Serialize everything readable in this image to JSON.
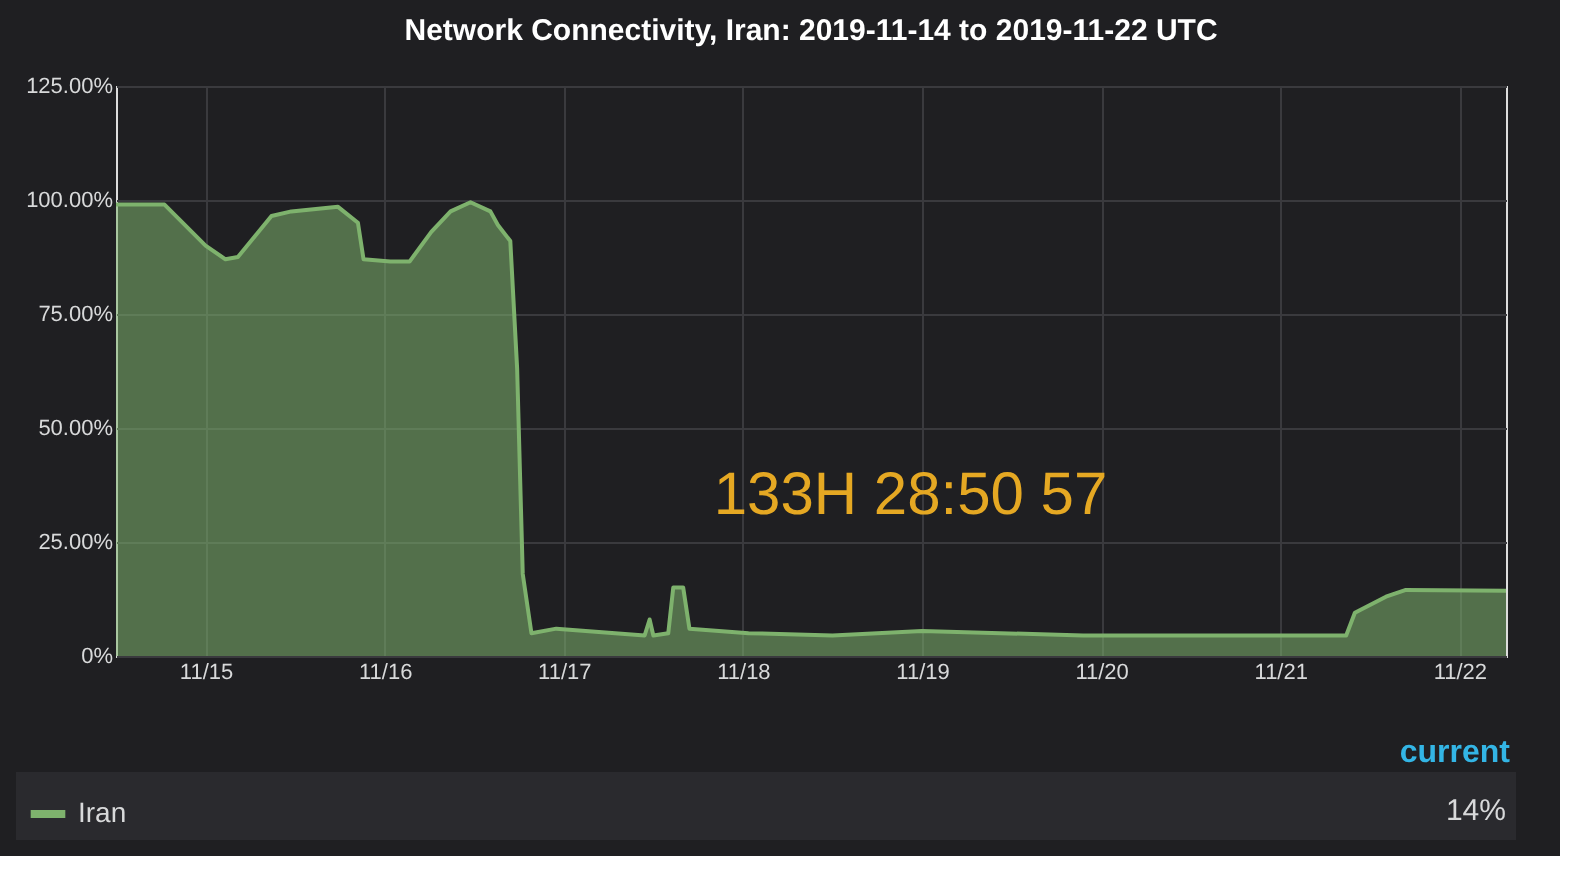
{
  "chart_data": {
    "type": "area",
    "title": "Network Connectivity, Iran: 2019-11-14 to 2019-11-22 UTC",
    "x": [
      "2019-11-14T12:00",
      "2019-11-14T18:30",
      "2019-11-15T00:00",
      "2019-11-15T02:40",
      "2019-11-15T04:20",
      "2019-11-15T08:50",
      "2019-11-15T11:30",
      "2019-11-15T17:45",
      "2019-11-15T20:25",
      "2019-11-15T21:10",
      "2019-11-16T00:45",
      "2019-11-16T03:20",
      "2019-11-16T06:15",
      "2019-11-16T08:50",
      "2019-11-16T11:30",
      "2019-11-16T14:10",
      "2019-11-16T15:10",
      "2019-11-16T16:50",
      "2019-11-16T17:45",
      "2019-11-16T18:30",
      "2019-11-16T19:40",
      "2019-11-16T23:00",
      "2019-11-17T10:50",
      "2019-11-17T11:30",
      "2019-11-17T12:00",
      "2019-11-17T14:00",
      "2019-11-17T14:40",
      "2019-11-17T16:00",
      "2019-11-17T16:50",
      "2019-11-18T00:45",
      "2019-11-18T12:00",
      "2019-11-19T00:00",
      "2019-11-19T21:35",
      "2019-11-21T08:50",
      "2019-11-21T10:00",
      "2019-11-21T14:10",
      "2019-11-21T16:50",
      "2019-11-22T06:15"
    ],
    "series": [
      {
        "name": "Iran",
        "color": "#7eb26d",
        "values": [
          99,
          99,
          90,
          87,
          87.5,
          96.5,
          97.5,
          98.5,
          95,
          87,
          86.5,
          86.5,
          93,
          97.5,
          99.5,
          97.5,
          94.5,
          91,
          63,
          18,
          5,
          6,
          4.5,
          8,
          4.5,
          5,
          15,
          15,
          6,
          5,
          4.5,
          5.5,
          4.5,
          4.5,
          9.5,
          13,
          14.5,
          14.3
        ]
      }
    ],
    "xlim": [
      "2019-11-14T12:00",
      "2019-11-22T06:15"
    ],
    "xticks": [
      {
        "value": "2019-11-15",
        "label": "11/15"
      },
      {
        "value": "2019-11-16",
        "label": "11/16"
      },
      {
        "value": "2019-11-17",
        "label": "11/17"
      },
      {
        "value": "2019-11-18",
        "label": "11/18"
      },
      {
        "value": "2019-11-19",
        "label": "11/19"
      },
      {
        "value": "2019-11-20",
        "label": "11/20"
      },
      {
        "value": "2019-11-21",
        "label": "11/21"
      },
      {
        "value": "2019-11-22",
        "label": "11/22"
      }
    ],
    "ylim": [
      0,
      125
    ],
    "yticks": [
      {
        "value": 0,
        "label": "0%"
      },
      {
        "value": 25,
        "label": "25.00%"
      },
      {
        "value": 50,
        "label": "50.00%"
      },
      {
        "value": 75,
        "label": "75.00%"
      },
      {
        "value": 100,
        "label": "100.00%"
      },
      {
        "value": 125,
        "label": "125.00%"
      }
    ],
    "grid": true,
    "legend": "bottom",
    "annotations": [
      "133H 28:50 57",
      "current",
      "14%"
    ]
  }
}
